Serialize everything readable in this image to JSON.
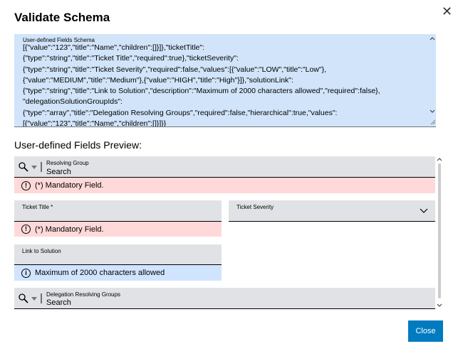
{
  "dialog": {
    "title": "Validate Schema",
    "schema": {
      "label": "User-defined Fields Schema",
      "lines": [
        "[{\"value\":\"123\",\"title\":\"Name\",\"children\":[]}]},\"ticketTitle\":",
        "{\"type\":\"string\",\"title\":\"Ticket Title\",\"required\":true},\"ticketSeverity\":",
        "{\"type\":\"string\",\"title\":\"Ticket Severity\",\"required\":false,\"values\":[{\"value\":\"LOW\",\"title\":\"Low\"},",
        "{\"value\":\"MEDIUM\",\"title\":\"Medium\"},{\"value\":\"HIGH\",\"title\":\"High\"}]},\"solutionLink\":",
        "{\"type\":\"string\",\"title\":\"Link to Solution\",\"description\":\"Maximum of 2000 characters allowed\",\"required\":false},",
        "\"delegationSolutionGroupIds\":",
        "{\"type\":\"array\",\"title\":\"Delegation Resolving Groups\",\"required\":false,\"hierarchical\":true,\"values\":",
        "[{\"value\":\"123\",\"title\":\"Name\",\"children\":[]}]}}"
      ]
    },
    "preview_heading": "User-defined Fields Preview:",
    "fields": [
      {
        "label": "Resolving Group",
        "placeholder": "Search",
        "message": "(*) Mandatory Field."
      },
      {
        "label": "Ticket Title *",
        "message": "(*) Mandatory Field."
      },
      {
        "label": "Ticket Severity"
      },
      {
        "label": "Link to Solution",
        "message": "Maximum of 2000 characters allowed"
      },
      {
        "label": "Delegation Resolving Groups",
        "placeholder": "Search"
      }
    ],
    "close_button": "Close"
  }
}
